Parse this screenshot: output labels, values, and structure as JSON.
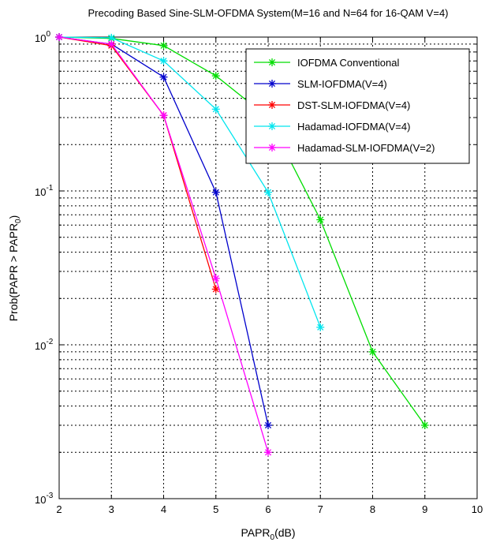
{
  "chart_data": {
    "type": "line",
    "title": "Precoding Based Sine-SLM-OFDMA System(M=16 and N=64 for 16-QAM V=4)",
    "xlabel": {
      "main": "PAPR",
      "sub": "0",
      "tail": "(dB)"
    },
    "ylabel": {
      "main": "Prob(PAPR > PAPR",
      "sub": "0",
      "tail": ")"
    },
    "xlim": [
      2,
      10
    ],
    "ylim": [
      0.001,
      1
    ],
    "yscale": "log",
    "grid": true,
    "legend_position": "top-right",
    "x_ticks": [
      "2",
      "3",
      "4",
      "5",
      "6",
      "7",
      "8",
      "9",
      "10"
    ],
    "y_ticks": [
      {
        "base": "10",
        "exp": "0"
      },
      {
        "base": "10",
        "exp": "-1"
      },
      {
        "base": "10",
        "exp": "-2"
      },
      {
        "base": "10",
        "exp": "-3"
      }
    ],
    "series": [
      {
        "name": "IOFDMA Conventional",
        "color": "#00dd00",
        "x": [
          2,
          3,
          4,
          5,
          6,
          7,
          8,
          9
        ],
        "y": [
          1.0,
          0.98,
          0.88,
          0.56,
          0.3,
          0.065,
          0.009,
          0.003
        ]
      },
      {
        "name": "SLM-IOFDMA(V=4)",
        "color": "#0000cc",
        "x": [
          2,
          3,
          4,
          5,
          6
        ],
        "y": [
          1.0,
          0.9,
          0.55,
          0.098,
          0.003
        ]
      },
      {
        "name": "DST-SLM-IOFDMA(V=4)",
        "color": "#ff0000",
        "x": [
          2,
          3,
          4,
          5
        ],
        "y": [
          1.0,
          0.88,
          0.31,
          0.023
        ]
      },
      {
        "name": "Hadamad-IOFDMA(V=4)",
        "color": "#00e5ee",
        "x": [
          2,
          3,
          4,
          5,
          6,
          7
        ],
        "y": [
          1.0,
          0.99,
          0.7,
          0.34,
          0.098,
          0.013
        ]
      },
      {
        "name": "Hadamad-SLM-IOFDMA(V=2)",
        "color": "#ff00ff",
        "x": [
          2,
          3,
          4,
          5,
          6
        ],
        "y": [
          1.0,
          0.9,
          0.31,
          0.027,
          0.002
        ]
      }
    ]
  }
}
